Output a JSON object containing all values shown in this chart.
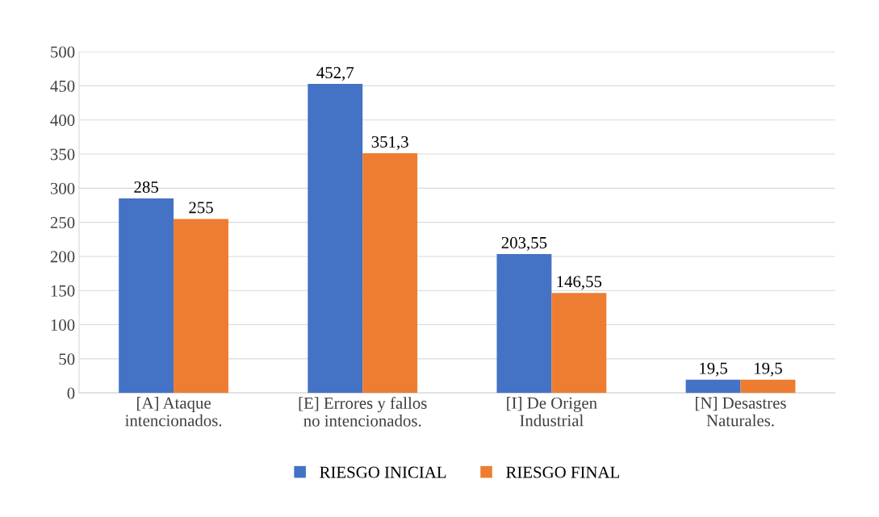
{
  "chart_data": {
    "type": "bar",
    "categories": [
      "[A] Ataque\nintencionados.",
      "[E] Errores y fallos\nno intencionados.",
      "[I] De Origen\nIndustrial",
      "[N] Desastres\nNaturales."
    ],
    "series": [
      {
        "name": "RIESGO INICIAL",
        "color": "#4472c4",
        "values": [
          285,
          452.7,
          203.55,
          19.5
        ],
        "value_labels": [
          "285",
          "452,7",
          "203,55",
          "19,5"
        ]
      },
      {
        "name": "RIESGO FINAL",
        "color": "#ed7d31",
        "values": [
          255,
          351.3,
          146.55,
          19.5
        ],
        "value_labels": [
          "255",
          "351,3",
          "146,55",
          "19,5"
        ]
      }
    ],
    "ylim": [
      0,
      500
    ],
    "yticks": [
      0,
      50,
      100,
      150,
      200,
      250,
      300,
      350,
      400,
      450,
      500
    ],
    "grid": "y",
    "legend": "bottom"
  }
}
